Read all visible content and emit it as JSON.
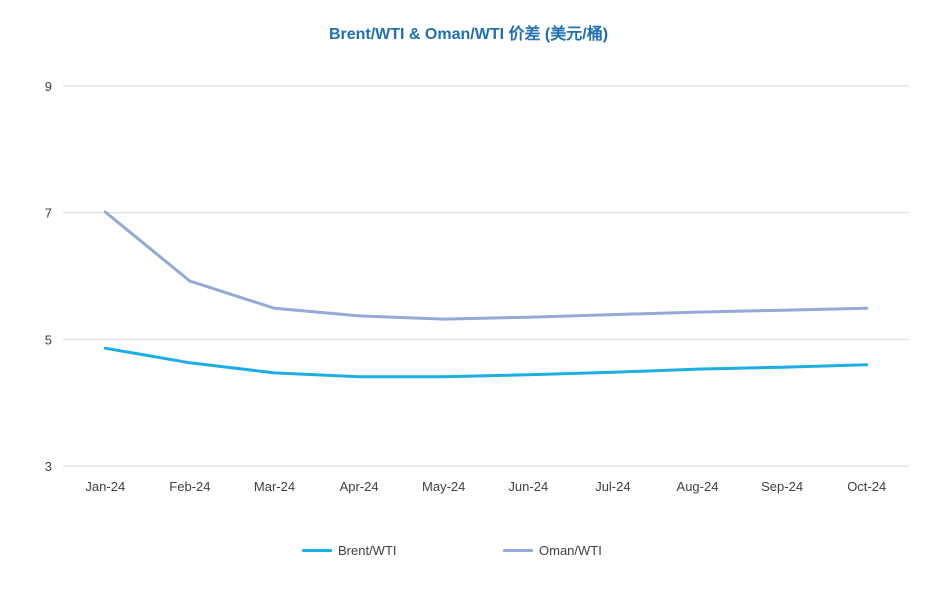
{
  "chart_data": {
    "type": "line",
    "title": "Brent/WTI & Oman/WTI 价差 (美元/桶)",
    "categories": [
      "Jan-24",
      "Feb-24",
      "Mar-24",
      "Apr-24",
      "May-24",
      "Jun-24",
      "Jul-24",
      "Aug-24",
      "Sep-24",
      "Oct-24"
    ],
    "series": [
      {
        "name": "Brent/WTI",
        "color": "#1aaee5",
        "values": [
          4.86,
          4.63,
          4.47,
          4.41,
          4.41,
          4.44,
          4.48,
          4.53,
          4.56,
          4.6
        ]
      },
      {
        "name": "Oman/WTI",
        "color": "#93a9d8",
        "values": [
          7.01,
          5.92,
          5.49,
          5.37,
          5.32,
          5.35,
          5.39,
          5.43,
          5.46,
          5.49
        ]
      }
    ],
    "ylim": [
      3,
      9
    ],
    "yticks": [
      3,
      5,
      7,
      9
    ],
    "grid": true,
    "legend": "bottom"
  }
}
